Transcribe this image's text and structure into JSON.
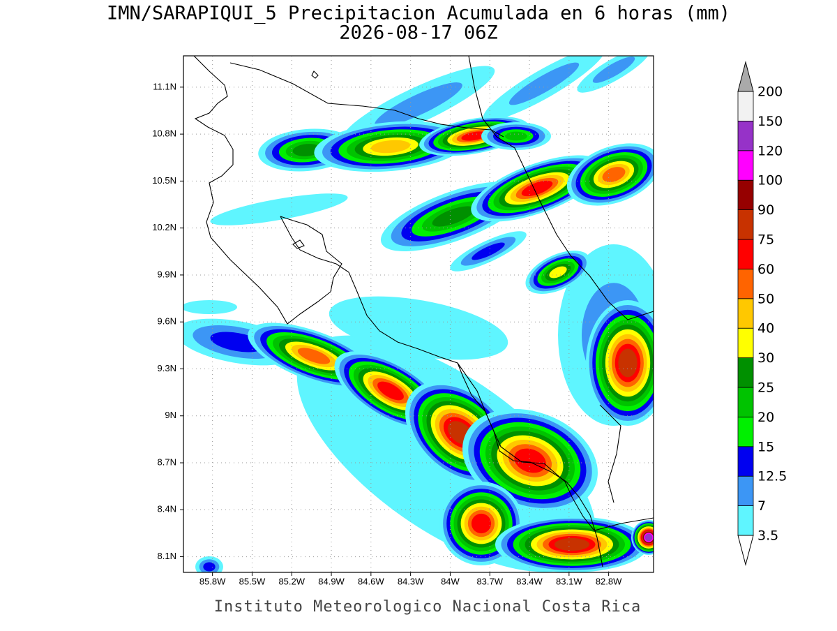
{
  "header": {
    "title": "IMN/SARAPIQUI_5 Precipitacion Acumulada en 6 horas (mm)",
    "subtitle": "2026-08-17 06Z"
  },
  "map": {
    "lonlim": [
      -86.02,
      -82.46
    ],
    "latlim": [
      8.0,
      11.3
    ],
    "lon_ticks": [
      {
        "value": -85.8,
        "label": "85.8W"
      },
      {
        "value": -85.5,
        "label": "85.5W"
      },
      {
        "value": -85.2,
        "label": "85.2W"
      },
      {
        "value": -84.9,
        "label": "84.9W"
      },
      {
        "value": -84.6,
        "label": "84.6W"
      },
      {
        "value": -84.3,
        "label": "84.3W"
      },
      {
        "value": -84.0,
        "label": "84W"
      },
      {
        "value": -83.7,
        "label": "83.7W"
      },
      {
        "value": -83.4,
        "label": "83.4W"
      },
      {
        "value": -83.1,
        "label": "83.1W"
      },
      {
        "value": -82.8,
        "label": "82.8W"
      }
    ],
    "lat_ticks": [
      {
        "value": 11.1,
        "label": "11.1N"
      },
      {
        "value": 10.8,
        "label": "10.8N"
      },
      {
        "value": 10.5,
        "label": "10.5N"
      },
      {
        "value": 10.2,
        "label": "10.2N"
      },
      {
        "value": 9.9,
        "label": "9.9N"
      },
      {
        "value": 9.6,
        "label": "9.6N"
      },
      {
        "value": 9.3,
        "label": "9.3N"
      },
      {
        "value": 9.0,
        "label": "9N"
      },
      {
        "value": 8.7,
        "label": "8.7N"
      },
      {
        "value": 8.4,
        "label": "8.4N"
      },
      {
        "value": 8.1,
        "label": "8.1N"
      }
    ],
    "grid": true
  },
  "colorbar": {
    "levels": [
      3.5,
      7,
      12.5,
      15,
      20,
      25,
      30,
      40,
      50,
      60,
      75,
      90,
      100,
      120,
      150,
      200
    ],
    "colors": [
      "#5ff5ff",
      "#3c96f5",
      "#0000f0",
      "#00f000",
      "#00c300",
      "#009000",
      "#ffff00",
      "#ffc800",
      "#ff6400",
      "#ff0000",
      "#c83200",
      "#960000",
      "#ff00ff",
      "#9632c8",
      "#f2f2f2"
    ],
    "over_color": "#aaaaaa",
    "under_color": "#ffffff"
  },
  "footer": "Instituto Meteorologico Nacional Costa Rica"
}
